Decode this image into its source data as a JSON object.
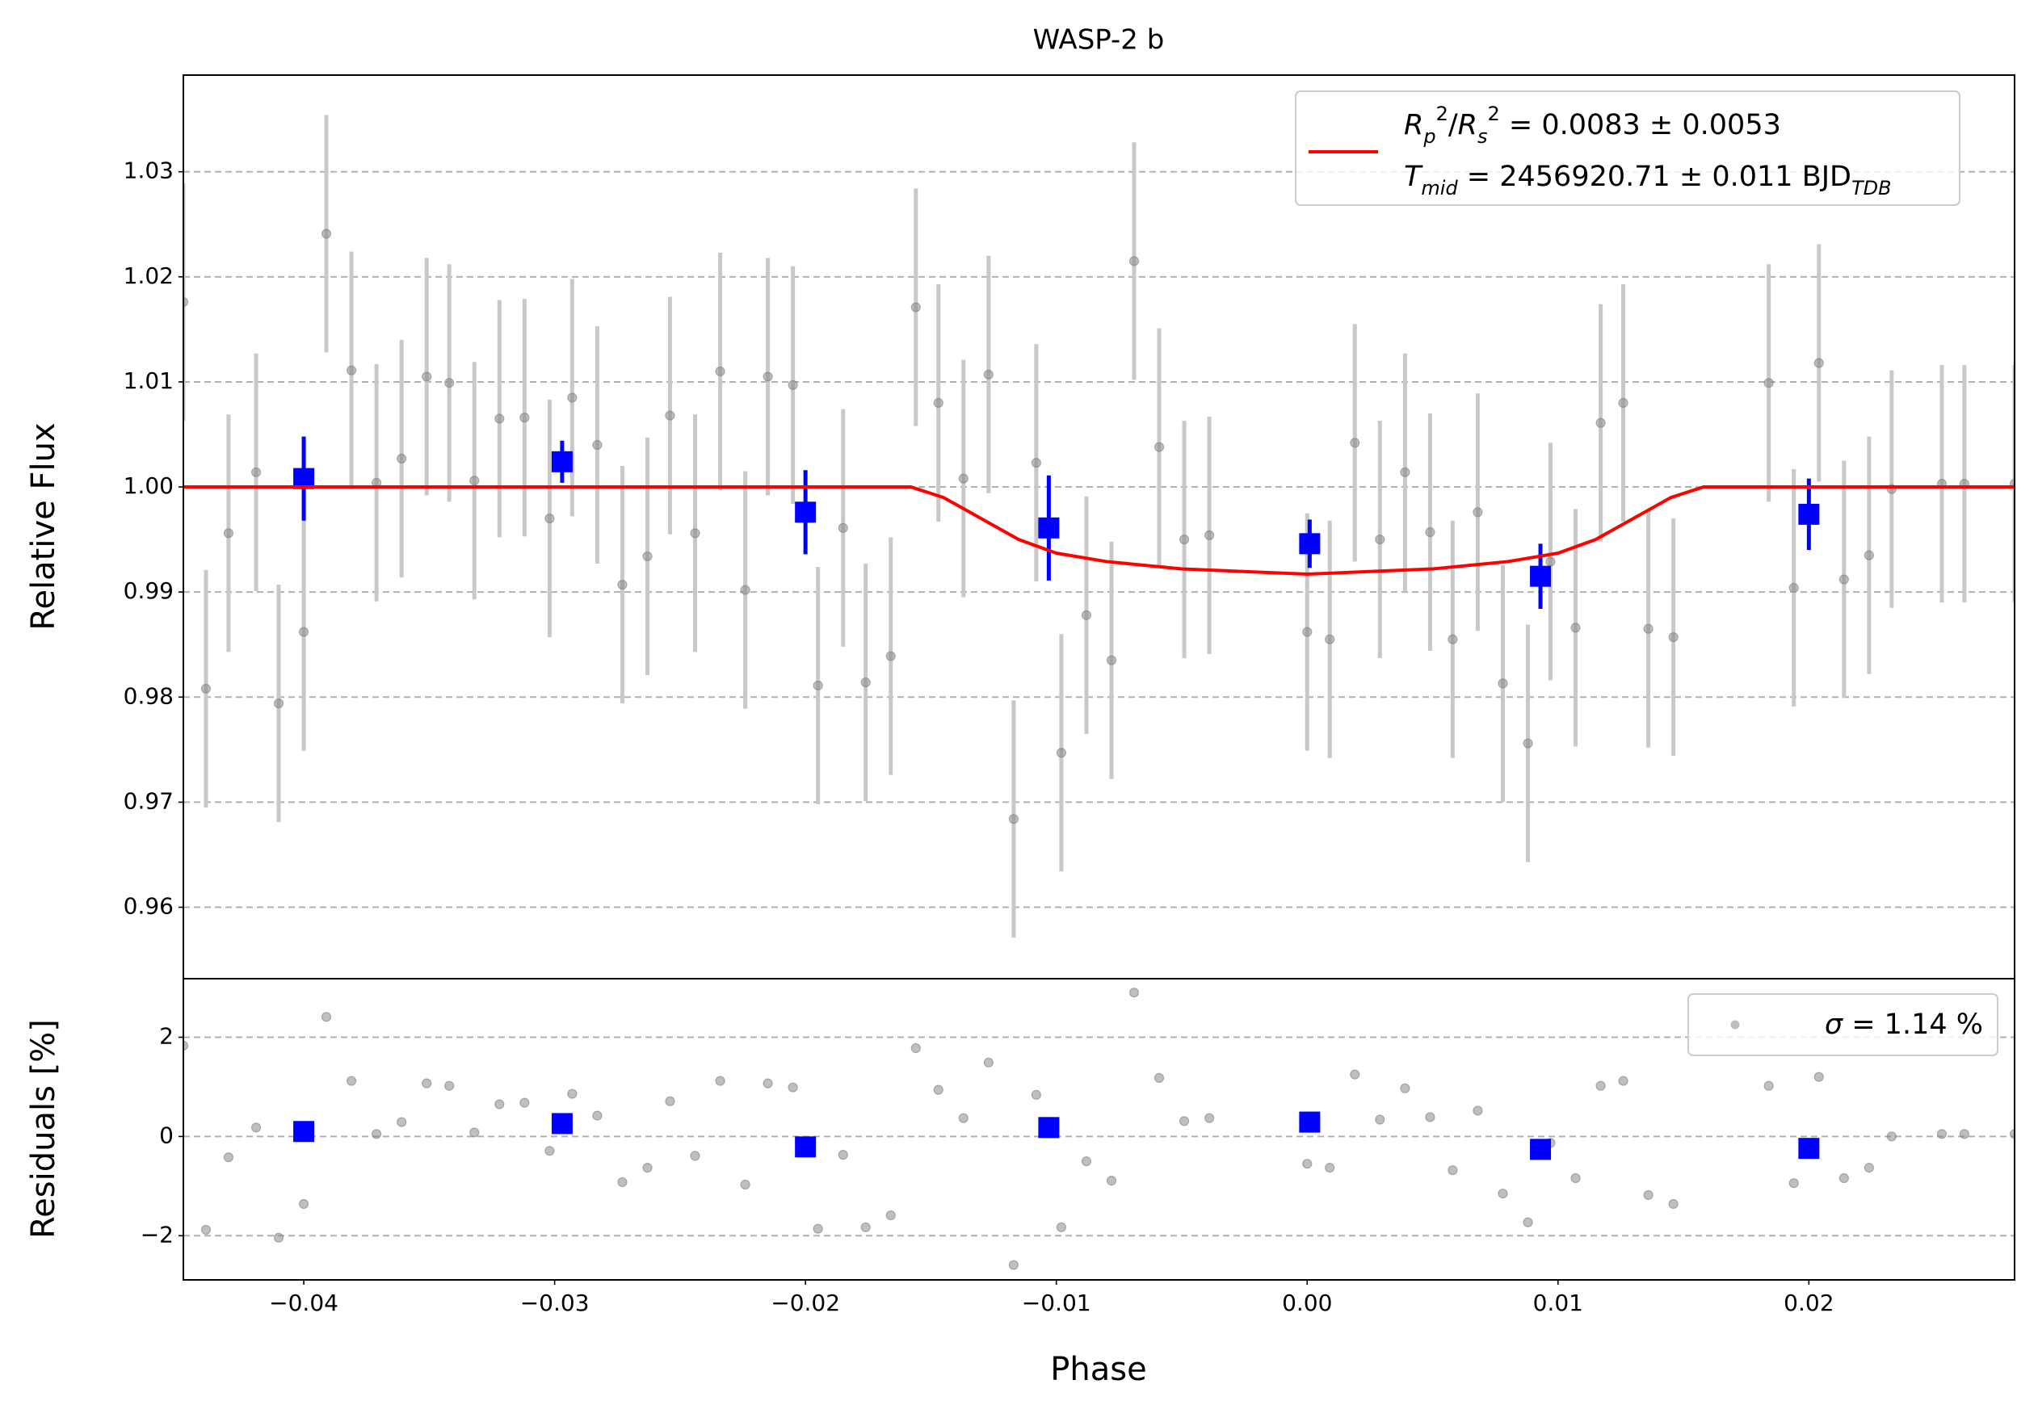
{
  "chart_data": [
    {
      "type": "scatter",
      "title": "WASP-2 b",
      "ylabel": "Relative Flux",
      "xlim": [
        -0.0448,
        0.0282
      ],
      "ylim": [
        0.9532,
        1.0392
      ],
      "yticks": [
        0.96,
        0.97,
        0.98,
        0.99,
        {
          "value": 1.0,
          "label": "1.00"
        },
        1.01,
        1.02,
        1.03
      ],
      "grid": "y",
      "legend": "upper right",
      "legend_lines": [
        [
          "R",
          "p",
          "2",
          "/",
          "R",
          "s",
          "2",
          " = 0.0083 ± 0.0053"
        ],
        [
          "T",
          "mid",
          " = 2456920.71 ± 0.011 BJD",
          "TDB"
        ]
      ],
      "series": [
        {
          "color": "#808080",
          "error_color": "#c8c8c8",
          "marker": "circle",
          "error": 0.0113,
          "x": [
            -0.0448,
            -0.0439,
            -0.043,
            -0.0419,
            -0.041,
            -0.04,
            -0.0391,
            -0.0381,
            -0.0371,
            -0.0361,
            -0.0351,
            -0.0342,
            -0.0332,
            -0.0322,
            -0.0312,
            -0.0302,
            -0.0293,
            -0.0283,
            -0.0273,
            -0.0263,
            -0.0254,
            -0.0244,
            -0.0234,
            -0.0224,
            -0.0215,
            -0.0205,
            -0.0195,
            -0.0185,
            -0.0176,
            -0.0166,
            -0.0156,
            -0.0147,
            -0.0137,
            -0.0127,
            -0.0117,
            -0.0108,
            -0.0098,
            -0.0088,
            -0.0078,
            -0.0069,
            -0.0059,
            -0.0049,
            -0.0039,
            0.0,
            0.0009,
            0.0019,
            0.0029,
            0.0039,
            0.0049,
            0.0058,
            0.0068,
            0.0078,
            0.0088,
            0.0097,
            0.0107,
            0.0117,
            0.0126,
            0.0136,
            0.0146,
            0.0184,
            0.0194,
            0.0204,
            0.0214,
            0.0224,
            0.0233,
            0.0253,
            0.0262,
            0.0282
          ],
          "values": [
            1.0176,
            0.9808,
            0.9956,
            1.0014,
            0.9794,
            0.9862,
            1.0241,
            1.0111,
            1.0004,
            1.0027,
            1.0105,
            1.0099,
            1.0006,
            1.0065,
            1.0066,
            0.997,
            1.0085,
            1.004,
            0.9907,
            0.9934,
            1.0068,
            0.9956,
            1.011,
            0.9902,
            1.0105,
            1.0097,
            0.9811,
            0.9961,
            0.9814,
            0.9839,
            1.0171,
            1.008,
            1.0008,
            1.0107,
            0.9684,
            1.0023,
            0.9747,
            0.9878,
            0.9835,
            1.0215,
            1.0038,
            0.995,
            0.9954,
            0.9862,
            0.9855,
            1.0042,
            0.995,
            1.0014,
            0.9957,
            0.9855,
            0.9976,
            0.9813,
            0.9756,
            0.9929,
            0.9866,
            1.0061,
            1.008,
            0.9865,
            0.9857,
            1.0099,
            0.9904,
            1.0118,
            0.9912,
            0.9935,
            0.9998,
            1.0003,
            1.0003,
            1.0003
          ]
        },
        {
          "color": "#0000ff",
          "marker": "square",
          "x": [
            -0.04,
            -0.0297,
            -0.02,
            -0.0103,
            0.0001,
            0.0093,
            0.02
          ],
          "values": [
            1.0008,
            1.0024,
            0.9976,
            0.9961,
            0.9946,
            0.9915,
            0.9974
          ],
          "errors": [
            0.004,
            0.002,
            0.004,
            0.005,
            0.0023,
            0.0031,
            0.0034
          ]
        },
        {
          "color": "#ff0000",
          "line": true,
          "x": [
            -0.0448,
            -0.0158,
            -0.0145,
            -0.013,
            -0.0115,
            -0.01,
            -0.008,
            -0.005,
            0.0,
            0.005,
            0.008,
            0.01,
            0.0115,
            0.013,
            0.0145,
            0.0158,
            0.0282
          ],
          "values": [
            1.0,
            1.0,
            0.999,
            0.997,
            0.995,
            0.9937,
            0.9929,
            0.9922,
            0.9917,
            0.9922,
            0.9929,
            0.9937,
            0.995,
            0.997,
            0.999,
            1.0,
            1.0
          ]
        }
      ]
    },
    {
      "type": "scatter",
      "xlabel": "Phase",
      "ylabel": "Residuals [%]",
      "xlim": [
        -0.0448,
        0.0282
      ],
      "ylim": [
        -2.89,
        3.18
      ],
      "xticks": [
        {
          "value": -0.04,
          "label": "−0.04"
        },
        {
          "value": -0.03,
          "label": "−0.03"
        },
        {
          "value": -0.02,
          "label": "−0.02"
        },
        {
          "value": -0.01,
          "label": "−0.01"
        },
        {
          "value": 0.0,
          "label": "0.00"
        },
        {
          "value": 0.01,
          "label": "0.01"
        },
        {
          "value": 0.02,
          "label": "0.02"
        }
      ],
      "yticks": [
        {
          "value": -2,
          "label": "−2"
        },
        0,
        2
      ],
      "grid": "y",
      "legend": "upper right",
      "legend_lines": [
        [
          "σ",
          " = 1.14 %"
        ]
      ],
      "series": [
        {
          "color": "#808080",
          "marker": "circle",
          "x": [
            -0.0448,
            -0.0439,
            -0.043,
            -0.0419,
            -0.041,
            -0.04,
            -0.0391,
            -0.0381,
            -0.0371,
            -0.0361,
            -0.0351,
            -0.0342,
            -0.0332,
            -0.0322,
            -0.0312,
            -0.0302,
            -0.0293,
            -0.0283,
            -0.0273,
            -0.0263,
            -0.0254,
            -0.0244,
            -0.0234,
            -0.0224,
            -0.0215,
            -0.0205,
            -0.0195,
            -0.0185,
            -0.0176,
            -0.0166,
            -0.0156,
            -0.0147,
            -0.0137,
            -0.0127,
            -0.0117,
            -0.0108,
            -0.0098,
            -0.0088,
            -0.0078,
            -0.0069,
            -0.0059,
            -0.0049,
            -0.0039,
            0.0,
            0.0009,
            0.0019,
            0.0029,
            0.0039,
            0.0049,
            0.0058,
            0.0068,
            0.0078,
            0.0088,
            0.0097,
            0.0107,
            0.0117,
            0.0126,
            0.0136,
            0.0146,
            0.0184,
            0.0194,
            0.0204,
            0.0214,
            0.0224,
            0.0233,
            0.0253,
            0.0262,
            0.0282
          ],
          "values": [
            1.83,
            -1.88,
            -0.42,
            0.18,
            -2.04,
            -1.36,
            2.41,
            1.12,
            0.05,
            0.29,
            1.07,
            1.02,
            0.08,
            0.65,
            0.68,
            -0.29,
            0.86,
            0.42,
            -0.92,
            -0.63,
            0.71,
            -0.39,
            1.12,
            -0.97,
            1.07,
            0.99,
            -1.86,
            -0.37,
            -1.83,
            -1.59,
            1.78,
            0.94,
            0.37,
            1.49,
            -2.59,
            0.84,
            -1.83,
            -0.5,
            -0.89,
            2.9,
            1.18,
            0.31,
            0.37,
            -0.55,
            -0.63,
            1.25,
            0.34,
            0.97,
            0.39,
            -0.68,
            0.52,
            -1.15,
            -1.73,
            -0.13,
            -0.84,
            1.02,
            1.12,
            -1.18,
            -1.36,
            1.02,
            -0.94,
            1.2,
            -0.84,
            -0.63,
            0.0,
            0.05,
            0.05,
            0.05
          ]
        },
        {
          "color": "#0000ff",
          "marker": "square",
          "x": [
            -0.04,
            -0.0297,
            -0.02,
            -0.0103,
            0.0001,
            0.0093,
            0.02
          ],
          "values": [
            0.1,
            0.26,
            -0.21,
            0.18,
            0.29,
            -0.26,
            -0.24
          ]
        }
      ]
    }
  ]
}
